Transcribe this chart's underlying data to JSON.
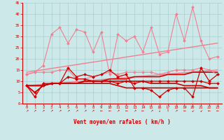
{
  "xlabel": "Vent moyen/en rafales ( km/h )",
  "xlim": [
    -0.5,
    23.5
  ],
  "ylim": [
    0,
    45
  ],
  "yticks": [
    0,
    5,
    10,
    15,
    20,
    25,
    30,
    35,
    40,
    45
  ],
  "xticks": [
    0,
    1,
    2,
    3,
    4,
    5,
    6,
    7,
    8,
    9,
    10,
    11,
    12,
    13,
    14,
    15,
    16,
    17,
    18,
    19,
    20,
    21,
    22,
    23
  ],
  "bg_color": "#cce8e8",
  "grid_color": "#aacfcf",
  "series": [
    {
      "comment": "light pink jagged - rafales high",
      "x": [
        0,
        1,
        2,
        3,
        4,
        5,
        6,
        7,
        8,
        9,
        10,
        11,
        12,
        13,
        14,
        15,
        16,
        17,
        18,
        19,
        20,
        21,
        22,
        23
      ],
      "y": [
        13,
        14,
        17,
        31,
        34,
        27,
        33,
        32,
        23,
        32,
        13,
        31,
        28,
        30,
        23,
        34,
        22,
        23,
        40,
        28,
        43,
        28,
        20,
        21
      ],
      "color": "#f08090",
      "lw": 0.8,
      "marker": "D",
      "ms": 2.0
    },
    {
      "comment": "light pink flat ~13-16",
      "x": [
        0,
        1,
        2,
        3,
        4,
        5,
        6,
        7,
        8,
        9,
        10,
        11,
        12,
        13,
        14,
        15,
        16,
        17,
        18,
        19,
        20,
        21,
        22,
        23
      ],
      "y": [
        13,
        14,
        14,
        14,
        15,
        15,
        11,
        11,
        12,
        13,
        14,
        13,
        14,
        14,
        14,
        14,
        13,
        14,
        15,
        15,
        15,
        16,
        15,
        13
      ],
      "color": "#f08090",
      "lw": 0.8,
      "marker": "D",
      "ms": 2.0
    },
    {
      "comment": "light pink diagonal trend upper",
      "x": [
        0,
        23
      ],
      "y": [
        14,
        27
      ],
      "color": "#f08090",
      "lw": 1.0,
      "marker": null,
      "ms": 0
    },
    {
      "comment": "light pink diagonal trend lower",
      "x": [
        0,
        23
      ],
      "y": [
        8,
        15
      ],
      "color": "#f08090",
      "lw": 1.0,
      "marker": null,
      "ms": 0
    },
    {
      "comment": "dark red jagged line 1 - main vent moyen",
      "x": [
        0,
        1,
        2,
        3,
        4,
        5,
        6,
        7,
        8,
        9,
        10,
        11,
        12,
        13,
        14,
        15,
        16,
        17,
        18,
        19,
        20,
        21,
        22,
        23
      ],
      "y": [
        8,
        3,
        9,
        9,
        9,
        16,
        12,
        13,
        12,
        13,
        15,
        12,
        13,
        7,
        7,
        6,
        3,
        6,
        7,
        7,
        3,
        16,
        10,
        13
      ],
      "color": "#cc0000",
      "lw": 0.9,
      "marker": "D",
      "ms": 2.0
    },
    {
      "comment": "dark red slight upward trend line",
      "x": [
        0,
        1,
        2,
        3,
        4,
        5,
        6,
        7,
        8,
        9,
        10,
        11,
        12,
        13,
        14,
        15,
        16,
        17,
        18,
        19,
        20,
        21,
        22,
        23
      ],
      "y": [
        8,
        8,
        8,
        9,
        9,
        9,
        9,
        10,
        10,
        10,
        11,
        11,
        11,
        12,
        12,
        12,
        12,
        13,
        13,
        13,
        14,
        14,
        14,
        14
      ],
      "color": "#cc0000",
      "lw": 1.2,
      "marker": null,
      "ms": 0
    },
    {
      "comment": "dark red flat ~9-10",
      "x": [
        0,
        1,
        2,
        3,
        4,
        5,
        6,
        7,
        8,
        9,
        10,
        11,
        12,
        13,
        14,
        15,
        16,
        17,
        18,
        19,
        20,
        21,
        22,
        23
      ],
      "y": [
        8,
        8,
        8,
        9,
        9,
        9,
        9,
        10,
        10,
        10,
        10,
        10,
        10,
        10,
        10,
        9,
        9,
        9,
        9,
        8,
        8,
        8,
        7,
        7
      ],
      "color": "#cc0000",
      "lw": 1.2,
      "marker": null,
      "ms": 0
    },
    {
      "comment": "dark red jagged line 2",
      "x": [
        0,
        1,
        2,
        3,
        4,
        5,
        6,
        7,
        8,
        9,
        10,
        11,
        12,
        13,
        14,
        15,
        16,
        17,
        18,
        19,
        20,
        21,
        22,
        23
      ],
      "y": [
        8,
        5,
        8,
        9,
        9,
        12,
        11,
        11,
        10,
        10,
        10,
        9,
        10,
        9,
        10,
        10,
        10,
        10,
        10,
        10,
        10,
        10,
        9,
        9
      ],
      "color": "#cc0000",
      "lw": 0.9,
      "marker": "D",
      "ms": 2.0
    },
    {
      "comment": "dark red flat ~7",
      "x": [
        0,
        1,
        2,
        3,
        4,
        5,
        6,
        7,
        8,
        9,
        10,
        11,
        12,
        13,
        14,
        15,
        16,
        17,
        18,
        19,
        20,
        21,
        22,
        23
      ],
      "y": [
        8,
        5,
        8,
        9,
        9,
        9,
        9,
        9,
        9,
        9,
        9,
        8,
        7,
        7,
        7,
        7,
        7,
        7,
        7,
        7,
        7,
        7,
        7,
        7
      ],
      "color": "#cc0000",
      "lw": 1.2,
      "marker": null,
      "ms": 0
    }
  ]
}
